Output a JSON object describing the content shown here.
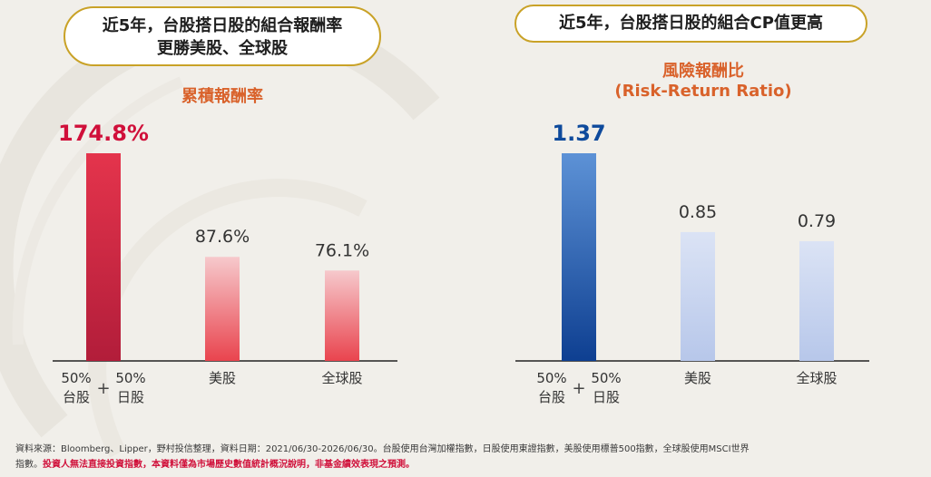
{
  "pill_left": {
    "line1": "近5年，台股搭日股的組合報酬率",
    "line2": "更勝美股、全球股"
  },
  "pill_right": {
    "text": "近5年，台股搭日股的組合CP值更高"
  },
  "colors": {
    "gold": "#c9a227",
    "orange": "#d9622b",
    "red_top": "#e4344c",
    "red_bottom": "#b21d3a",
    "pink_top": "#f6c9cc",
    "pink_bottom": "#e9444e",
    "blue_top": "#5d92d6",
    "blue_bottom": "#0e3f91",
    "lightblue_top": "#dbe3f5",
    "lightblue_bottom": "#b7c7ea",
    "highlight_red": "#d0103a",
    "highlight_blue": "#0e4a9c"
  },
  "chart_data": [
    {
      "type": "bar",
      "title": "累積報酬率",
      "categories": [
        {
          "line1a": "50%",
          "line1b": "50%",
          "line2a": "台股",
          "line2b": "日股",
          "plus": "+"
        },
        {
          "label": "美股"
        },
        {
          "label": "全球股"
        }
      ],
      "values": [
        174.8,
        87.6,
        76.1
      ],
      "value_labels": [
        "174.8%",
        "87.6%",
        "76.1%"
      ],
      "ylim": [
        0,
        174.8
      ],
      "grid": false
    },
    {
      "type": "bar",
      "title": "風險報酬比",
      "subtitle": "(Risk-Return Ratio)",
      "categories": [
        {
          "line1a": "50%",
          "line1b": "50%",
          "line2a": "台股",
          "line2b": "日股",
          "plus": "+"
        },
        {
          "label": "美股"
        },
        {
          "label": "全球股"
        }
      ],
      "values": [
        1.37,
        0.85,
        0.79
      ],
      "value_labels": [
        "1.37",
        "0.85",
        "0.79"
      ],
      "ylim": [
        0,
        1.37
      ],
      "grid": false
    }
  ],
  "footer": {
    "line1": "資料來源：Bloomberg、Lipper，野村投信整理，資料日期：2021/06/30-2026/06/30。台股使用台灣加權指數，日股使用東證指數，美股使用標普500指數，全球股使用MSCI世界",
    "line2_prefix": "指數。",
    "line2_warning": "投資人無法直接投資指數，本資料僅為市場歷史數值統計概況說明，非基金績效表現之預測。"
  }
}
